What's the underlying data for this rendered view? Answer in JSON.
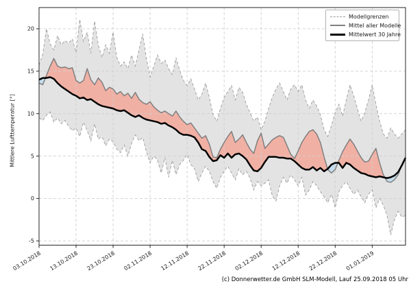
{
  "footer": "(c) Donnerwetter.de GmbH SLM-Modell, Lauf 25.09.2018 05 Uhr",
  "chart_data": {
    "type": "line",
    "title": "",
    "xlabel": "",
    "ylabel": "Mittlere Lufttemperatur [°]",
    "ylim": [
      -5.5,
      22.5
    ],
    "yticks": [
      -5,
      0,
      5,
      10,
      15,
      20
    ],
    "grid": true,
    "legend_position": "upper right",
    "start_date": "03.10.2018",
    "step": "daily",
    "x_days_total": 99,
    "xtick_days": [
      0,
      10,
      20,
      30,
      40,
      50,
      60,
      70,
      80,
      90
    ],
    "xtick_labels": [
      "03.10.2018",
      "13.10.2018",
      "23.10.2018",
      "02.11.2018",
      "12.11.2018",
      "22.11.2018",
      "02.12.2018",
      "12.12.2018",
      "22.12.2018",
      "01.01.2019"
    ],
    "legend": [
      {
        "label": "Modellgrenzen",
        "style": "dashed",
        "color": "#9a9a9a"
      },
      {
        "label": "Mittel aller Modelle",
        "style": "solid",
        "color": "#7f7f7f"
      },
      {
        "label": "Mittelwert 30 Jahre",
        "style": "solid-thick",
        "color": "#000000"
      }
    ],
    "colors": {
      "band_fill": "#e3e3e3",
      "band_edge": "#9a9a9a",
      "model_mean_line": "#7f7f7f",
      "mean30_line": "#000000",
      "warm_fill": "#f1b0a4",
      "cold_fill": "#c3dbea",
      "gridline": "#cfcfcf",
      "spine": "#262626",
      "tick_text": "#1a1a1a"
    },
    "series": [
      {
        "name": "Modellgrenze oben",
        "values": [
          15.7,
          17.0,
          20.0,
          18.2,
          17.5,
          19.2,
          18.1,
          18.6,
          18.3,
          18.8,
          17.2,
          21.1,
          18.5,
          19.6,
          17.1,
          20.9,
          18.1,
          16.6,
          18.1,
          17.1,
          19.6,
          16.6,
          15.6,
          16.1,
          15.3,
          16.9,
          15.6,
          17.5,
          19.4,
          16.5,
          14.3,
          15.6,
          16.9,
          15.9,
          16.3,
          15.3,
          14.6,
          16.6,
          15.1,
          13.9,
          13.3,
          14.1,
          12.9,
          11.6,
          12.3,
          13.6,
          11.9,
          9.9,
          9.1,
          10.6,
          11.9,
          12.6,
          13.3,
          11.6,
          13.1,
          12.5,
          11.1,
          10.1,
          9.1,
          9.6,
          8.1,
          9.1,
          10.6,
          11.9,
          12.9,
          13.6,
          12.6,
          11.6,
          12.9,
          13.4,
          12.6,
          13.4,
          11.6,
          10.6,
          11.6,
          10.9,
          9.9,
          8.1,
          7.3,
          8.6,
          10.1,
          11.1,
          9.7,
          11.6,
          13.4,
          12.1,
          10.6,
          9.1,
          10.1,
          11.6,
          13.4,
          11.1,
          9.1,
          7.6,
          7.1,
          8.3,
          7.6,
          7.1,
          7.6,
          8.1
        ]
      },
      {
        "name": "Modellgrenze unten",
        "values": [
          9.5,
          9.2,
          9.8,
          10.2,
          9.0,
          9.5,
          8.8,
          9.2,
          8.5,
          8.0,
          8.3,
          7.3,
          9.0,
          8.0,
          6.8,
          8.8,
          7.0,
          7.3,
          6.2,
          7.0,
          6.7,
          5.8,
          5.4,
          6.3,
          5.0,
          6.5,
          7.5,
          6.8,
          7.2,
          5.5,
          4.2,
          5.0,
          4.5,
          3.0,
          4.8,
          2.5,
          4.5,
          2.8,
          4.0,
          4.5,
          5.2,
          4.0,
          3.5,
          2.0,
          3.0,
          3.8,
          3.2,
          2.0,
          1.2,
          2.5,
          3.2,
          3.8,
          3.0,
          2.2,
          3.5,
          2.8,
          3.2,
          2.4,
          1.0,
          2.0,
          1.5,
          1.8,
          2.2,
          0.3,
          -0.3,
          1.5,
          2.5,
          1.8,
          2.8,
          2.2,
          1.5,
          2.5,
          0.4,
          1.0,
          2.0,
          1.5,
          0.8,
          0.2,
          -0.5,
          0.5,
          -1.1,
          0.8,
          1.5,
          2.0,
          1.2,
          0.5,
          1.0,
          0.2,
          -0.5,
          0.5,
          1.0,
          -1.1,
          0.0,
          -0.8,
          -2.0,
          -4.3,
          -2.5,
          -1.5,
          -2.2,
          -2.0
        ]
      },
      {
        "name": "Mittel aller Modelle",
        "values": [
          13.6,
          13.4,
          14.5,
          15.6,
          16.5,
          15.6,
          15.4,
          15.5,
          15.3,
          15.4,
          13.9,
          13.6,
          13.9,
          15.3,
          14.0,
          13.4,
          14.2,
          13.7,
          12.7,
          13.1,
          12.9,
          12.3,
          12.6,
          12.1,
          12.4,
          11.8,
          12.5,
          11.7,
          11.3,
          11.1,
          11.4,
          10.8,
          10.4,
          10.1,
          10.3,
          10.0,
          9.7,
          10.3,
          9.6,
          9.1,
          8.7,
          8.9,
          8.3,
          7.7,
          7.1,
          7.4,
          6.4,
          4.9,
          4.8,
          5.8,
          6.6,
          7.3,
          7.9,
          6.6,
          7.0,
          7.5,
          6.6,
          5.8,
          5.3,
          6.8,
          7.7,
          5.9,
          6.4,
          6.9,
          7.2,
          7.4,
          7.2,
          6.2,
          5.2,
          4.7,
          5.6,
          6.6,
          7.3,
          7.9,
          8.1,
          7.6,
          6.6,
          4.9,
          3.4,
          3.0,
          3.4,
          4.5,
          5.5,
          6.3,
          7.0,
          6.4,
          5.6,
          4.8,
          4.3,
          4.4,
          5.2,
          5.9,
          4.2,
          2.8,
          2.0,
          1.9,
          2.2,
          2.8,
          3.9,
          4.7
        ]
      },
      {
        "name": "Mittelwert 30 Jahre",
        "values": [
          14.0,
          14.2,
          14.2,
          14.3,
          14.1,
          13.6,
          13.2,
          12.9,
          12.6,
          12.3,
          12.1,
          11.8,
          11.9,
          11.6,
          11.7,
          11.4,
          11.1,
          10.9,
          10.8,
          10.7,
          10.6,
          10.4,
          10.3,
          10.4,
          10.1,
          9.8,
          9.6,
          9.8,
          9.5,
          9.3,
          9.2,
          9.1,
          9.0,
          8.8,
          8.9,
          8.6,
          8.4,
          8.1,
          7.7,
          7.5,
          7.5,
          7.4,
          7.2,
          6.6,
          5.8,
          5.6,
          4.9,
          4.4,
          4.5,
          5.1,
          4.8,
          5.3,
          4.8,
          5.2,
          5.3,
          5.0,
          4.6,
          3.9,
          3.3,
          3.2,
          3.6,
          4.3,
          4.9,
          4.9,
          4.9,
          4.8,
          4.8,
          4.7,
          4.7,
          4.4,
          4.0,
          3.6,
          3.4,
          3.4,
          3.7,
          3.3,
          3.6,
          3.2,
          3.5,
          4.0,
          4.2,
          4.2,
          3.6,
          4.2,
          4.0,
          3.6,
          3.3,
          3.0,
          2.9,
          2.7,
          2.6,
          2.5,
          2.6,
          2.5,
          2.4,
          2.5,
          2.7,
          3.1,
          3.9,
          4.8
        ]
      }
    ],
    "fills": [
      {
        "name": "Modellspanne",
        "between": [
          "Modellgrenze oben",
          "Modellgrenze unten"
        ],
        "color": "#e3e3e3"
      },
      {
        "name": "Modelle waermer als 30-Jahre-Mittel",
        "between": [
          "Mittel aller Modelle",
          "Mittelwert 30 Jahre"
        ],
        "color": "#f1b0a4"
      },
      {
        "name": "Modelle kaelter als 30-Jahre-Mittel",
        "between": [
          "Mittelwert 30 Jahre",
          "Mittel aller Modelle"
        ],
        "color": "#c3dbea"
      }
    ]
  }
}
